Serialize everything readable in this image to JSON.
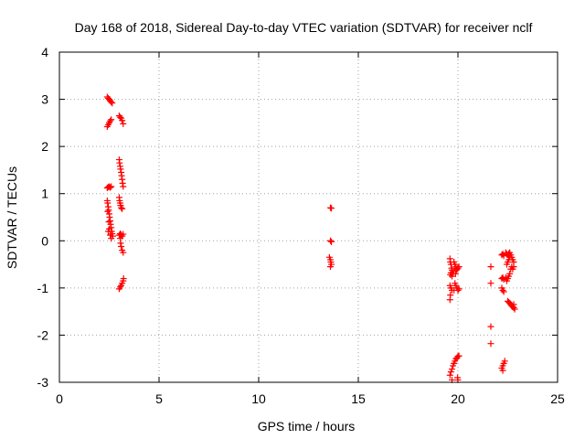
{
  "chart_data": {
    "type": "scatter",
    "title": "Day 168 of 2018, Sidereal Day-to-day VTEC variation (SDTVAR) for receiver nclf",
    "xlabel": "GPS time / hours",
    "ylabel": "SDTVAR / TECUs",
    "xlim": [
      0,
      25
    ],
    "ylim": [
      -3,
      4
    ],
    "xticks": [
      0,
      5,
      10,
      15,
      20,
      25
    ],
    "yticks": [
      -3,
      -2,
      -1,
      0,
      1,
      2,
      3,
      4
    ],
    "xtick_labels": [
      "0",
      "5",
      "10",
      "15",
      "20",
      "25"
    ],
    "ytick_labels": [
      "-3",
      "-2",
      "-1",
      "0",
      "1",
      "2",
      "3",
      "4"
    ],
    "grid": true,
    "marker": "+",
    "color": "#ff0000",
    "series": [
      {
        "name": "SDTVAR",
        "points": [
          [
            2.4,
            3.05
          ],
          [
            2.45,
            3.02
          ],
          [
            2.5,
            3.0
          ],
          [
            2.55,
            2.97
          ],
          [
            2.6,
            2.94
          ],
          [
            2.65,
            2.92
          ],
          [
            2.4,
            2.42
          ],
          [
            2.45,
            2.46
          ],
          [
            2.5,
            2.5
          ],
          [
            2.55,
            2.54
          ],
          [
            2.6,
            2.57
          ],
          [
            2.4,
            1.12
          ],
          [
            2.45,
            1.14
          ],
          [
            2.5,
            1.15
          ],
          [
            2.55,
            1.13
          ],
          [
            2.6,
            1.15
          ],
          [
            2.4,
            0.85
          ],
          [
            2.42,
            0.8
          ],
          [
            2.45,
            0.72
          ],
          [
            2.47,
            0.65
          ],
          [
            2.5,
            0.57
          ],
          [
            2.52,
            0.5
          ],
          [
            2.55,
            0.42
          ],
          [
            2.57,
            0.35
          ],
          [
            2.6,
            0.28
          ],
          [
            2.62,
            0.2
          ],
          [
            2.65,
            0.15
          ],
          [
            2.68,
            0.1
          ],
          [
            2.45,
            0.2
          ],
          [
            2.5,
            0.25
          ],
          [
            2.55,
            0.12
          ],
          [
            2.6,
            0.05
          ],
          [
            2.42,
            0.62
          ],
          [
            2.48,
            0.4
          ],
          [
            3.0,
            2.65
          ],
          [
            3.05,
            2.62
          ],
          [
            3.1,
            2.6
          ],
          [
            3.15,
            2.55
          ],
          [
            3.2,
            2.48
          ],
          [
            3.0,
            1.72
          ],
          [
            3.02,
            1.65
          ],
          [
            3.05,
            1.58
          ],
          [
            3.07,
            1.52
          ],
          [
            3.1,
            1.45
          ],
          [
            3.12,
            1.38
          ],
          [
            3.15,
            1.3
          ],
          [
            3.17,
            1.22
          ],
          [
            3.2,
            1.15
          ],
          [
            3.0,
            0.92
          ],
          [
            3.02,
            0.85
          ],
          [
            3.05,
            0.8
          ],
          [
            3.07,
            0.75
          ],
          [
            3.1,
            0.7
          ],
          [
            3.15,
            0.68
          ],
          [
            3.0,
            0.12
          ],
          [
            3.05,
            0.15
          ],
          [
            3.1,
            0.13
          ],
          [
            3.15,
            0.1
          ],
          [
            3.2,
            0.14
          ],
          [
            3.05,
            0.05
          ],
          [
            3.07,
            -0.05
          ],
          [
            3.1,
            -0.12
          ],
          [
            3.15,
            -0.2
          ],
          [
            3.2,
            -0.25
          ],
          [
            3.0,
            -1.02
          ],
          [
            3.05,
            -0.98
          ],
          [
            3.1,
            -0.95
          ],
          [
            3.15,
            -0.9
          ],
          [
            3.2,
            -0.85
          ],
          [
            3.22,
            -0.8
          ],
          [
            13.6,
            0.7
          ],
          [
            13.65,
            0.69
          ],
          [
            13.6,
            0.0
          ],
          [
            13.65,
            -0.02
          ],
          [
            13.55,
            -0.35
          ],
          [
            13.6,
            -0.4
          ],
          [
            13.62,
            -0.45
          ],
          [
            13.65,
            -0.5
          ],
          [
            13.6,
            -0.55
          ],
          [
            19.6,
            -0.38
          ],
          [
            19.62,
            -0.45
          ],
          [
            19.65,
            -0.5
          ],
          [
            19.68,
            -0.58
          ],
          [
            19.7,
            -0.62
          ],
          [
            19.62,
            -0.72
          ],
          [
            19.65,
            -0.68
          ],
          [
            19.7,
            -0.75
          ],
          [
            19.75,
            -0.7
          ],
          [
            19.78,
            -0.65
          ],
          [
            19.6,
            -0.95
          ],
          [
            19.65,
            -1.0
          ],
          [
            19.7,
            -1.05
          ],
          [
            19.62,
            -1.15
          ],
          [
            19.6,
            -1.25
          ],
          [
            19.8,
            -0.45
          ],
          [
            19.85,
            -0.5
          ],
          [
            19.9,
            -0.55
          ],
          [
            19.95,
            -0.6
          ],
          [
            20.0,
            -0.58
          ],
          [
            20.05,
            -0.55
          ],
          [
            19.85,
            -0.9
          ],
          [
            19.9,
            -0.95
          ],
          [
            19.95,
            -1.0
          ],
          [
            20.0,
            -1.05
          ],
          [
            20.05,
            -1.02
          ],
          [
            19.8,
            -1.05
          ],
          [
            19.88,
            -0.7
          ],
          [
            19.92,
            -0.62
          ],
          [
            19.6,
            -2.85
          ],
          [
            19.65,
            -2.78
          ],
          [
            19.7,
            -2.72
          ],
          [
            19.75,
            -2.65
          ],
          [
            19.8,
            -2.6
          ],
          [
            19.85,
            -2.55
          ],
          [
            19.9,
            -2.5
          ],
          [
            19.95,
            -2.48
          ],
          [
            20.0,
            -2.45
          ],
          [
            20.05,
            -2.44
          ],
          [
            19.7,
            -2.95
          ],
          [
            19.98,
            -2.9
          ],
          [
            20.0,
            -2.95
          ],
          [
            21.65,
            -0.55
          ],
          [
            21.65,
            -0.9
          ],
          [
            21.65,
            -1.82
          ],
          [
            21.65,
            -2.18
          ],
          [
            22.2,
            -0.3
          ],
          [
            22.25,
            -0.28
          ],
          [
            22.3,
            -0.32
          ],
          [
            22.2,
            -0.8
          ],
          [
            22.25,
            -0.78
          ],
          [
            22.3,
            -0.82
          ],
          [
            22.2,
            -1.0
          ],
          [
            22.25,
            -1.05
          ],
          [
            22.3,
            -1.08
          ],
          [
            22.2,
            -2.7
          ],
          [
            22.25,
            -2.65
          ],
          [
            22.3,
            -2.6
          ],
          [
            22.35,
            -2.55
          ],
          [
            22.25,
            -2.75
          ],
          [
            22.4,
            -0.25
          ],
          [
            22.45,
            -0.28
          ],
          [
            22.5,
            -0.3
          ],
          [
            22.55,
            -0.27
          ],
          [
            22.6,
            -0.25
          ],
          [
            22.65,
            -0.3
          ],
          [
            22.7,
            -0.35
          ],
          [
            22.75,
            -0.4
          ],
          [
            22.8,
            -0.45
          ],
          [
            22.8,
            -0.55
          ],
          [
            22.75,
            -0.6
          ],
          [
            22.7,
            -0.55
          ],
          [
            22.65,
            -0.6
          ],
          [
            22.6,
            -0.7
          ],
          [
            22.55,
            -0.75
          ],
          [
            22.5,
            -0.8
          ],
          [
            22.45,
            -0.85
          ],
          [
            22.4,
            -0.78
          ],
          [
            22.45,
            -0.5
          ],
          [
            22.5,
            -0.45
          ],
          [
            22.55,
            -0.4
          ],
          [
            22.6,
            -0.35
          ],
          [
            22.5,
            -1.28
          ],
          [
            22.55,
            -1.3
          ],
          [
            22.6,
            -1.32
          ],
          [
            22.65,
            -1.35
          ],
          [
            22.7,
            -1.38
          ],
          [
            22.75,
            -1.4
          ],
          [
            22.8,
            -1.42
          ],
          [
            22.85,
            -1.45
          ],
          [
            22.8,
            -1.35
          ]
        ]
      }
    ]
  }
}
